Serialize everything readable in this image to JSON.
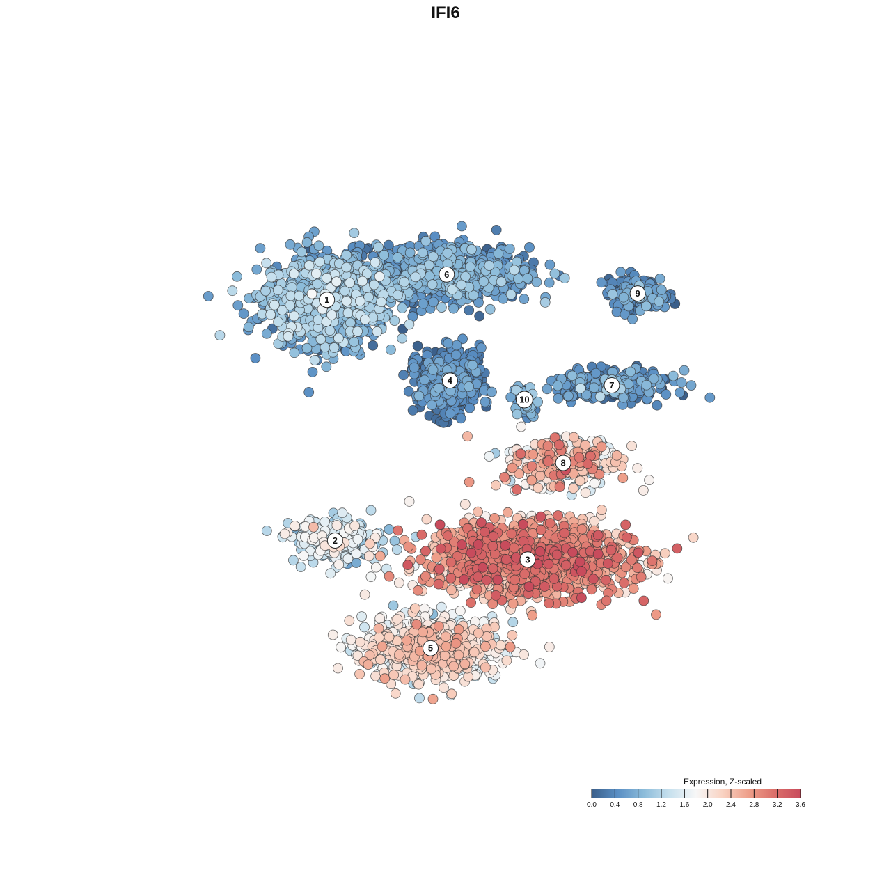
{
  "chart_data": {
    "type": "scatter",
    "title": "IFI6",
    "xlabel": "",
    "ylabel": "",
    "xlim": [
      -10,
      10
    ],
    "ylim": [
      -10,
      10
    ],
    "grid": false,
    "axes_visible": false,
    "point_style": {
      "stroke": "#333333",
      "radius": 7
    },
    "clusters": [
      {
        "label": "1",
        "center": [
          -4.2,
          4.6
        ],
        "spread": [
          1.95,
          1.45
        ],
        "n": 900,
        "expr_mean": 0.75,
        "expr_sd": 0.33
      },
      {
        "label": "6",
        "center": [
          -0.5,
          5.4
        ],
        "spread": [
          2.55,
          0.85
        ],
        "n": 750,
        "expr_mean": 0.55,
        "expr_sd": 0.26
      },
      {
        "label": "9",
        "center": [
          5.4,
          4.8
        ],
        "spread": [
          0.95,
          0.55
        ],
        "n": 140,
        "expr_mean": 0.4,
        "expr_sd": 0.25
      },
      {
        "label": "7",
        "center": [
          4.6,
          1.9
        ],
        "spread": [
          1.9,
          0.45
        ],
        "n": 260,
        "expr_mean": 0.42,
        "expr_sd": 0.28
      },
      {
        "label": "4",
        "center": [
          -0.4,
          2.05
        ],
        "spread": [
          0.95,
          0.95
        ],
        "n": 550,
        "expr_mean": 0.28,
        "expr_sd": 0.22
      },
      {
        "label": "10",
        "center": [
          1.9,
          1.45
        ],
        "spread": [
          0.35,
          0.5
        ],
        "n": 60,
        "expr_mean": 0.6,
        "expr_sd": 0.25
      },
      {
        "label": "8",
        "center": [
          3.1,
          -0.55
        ],
        "spread": [
          1.75,
          0.8
        ],
        "n": 320,
        "expr_mean": 2.0,
        "expr_sd": 0.55
      },
      {
        "label": "2",
        "center": [
          -3.95,
          -3.0
        ],
        "spread": [
          1.4,
          0.7
        ],
        "n": 260,
        "expr_mean": 1.3,
        "expr_sd": 0.35
      },
      {
        "label": "3",
        "center": [
          2.0,
          -3.6
        ],
        "spread": [
          3.1,
          1.15
        ],
        "n": 1300,
        "expr_mean": 2.6,
        "expr_sd": 0.42
      },
      {
        "label": "5",
        "center": [
          -1.0,
          -6.4
        ],
        "spread": [
          2.05,
          0.95
        ],
        "n": 800,
        "expr_mean": 1.85,
        "expr_sd": 0.38
      }
    ],
    "color_scale": {
      "title": "Expression, Z-scaled",
      "min": 0.0,
      "max": 3.6,
      "ticks": [
        "0.0",
        "0.4",
        "0.8",
        "1.2",
        "1.6",
        "2.0",
        "2.4",
        "2.8",
        "3.2",
        "3.6"
      ],
      "stops": [
        {
          "v": 0.0,
          "color": "#3b5f8a"
        },
        {
          "v": 0.45,
          "color": "#5a8fc4"
        },
        {
          "v": 0.9,
          "color": "#8cbcda"
        },
        {
          "v": 1.35,
          "color": "#c8e1ee"
        },
        {
          "v": 1.8,
          "color": "#f7f7f7"
        },
        {
          "v": 2.25,
          "color": "#f9d3c3"
        },
        {
          "v": 2.7,
          "color": "#ee9f8a"
        },
        {
          "v": 3.15,
          "color": "#db6f6a"
        },
        {
          "v": 3.6,
          "color": "#c84b5c"
        }
      ]
    }
  }
}
